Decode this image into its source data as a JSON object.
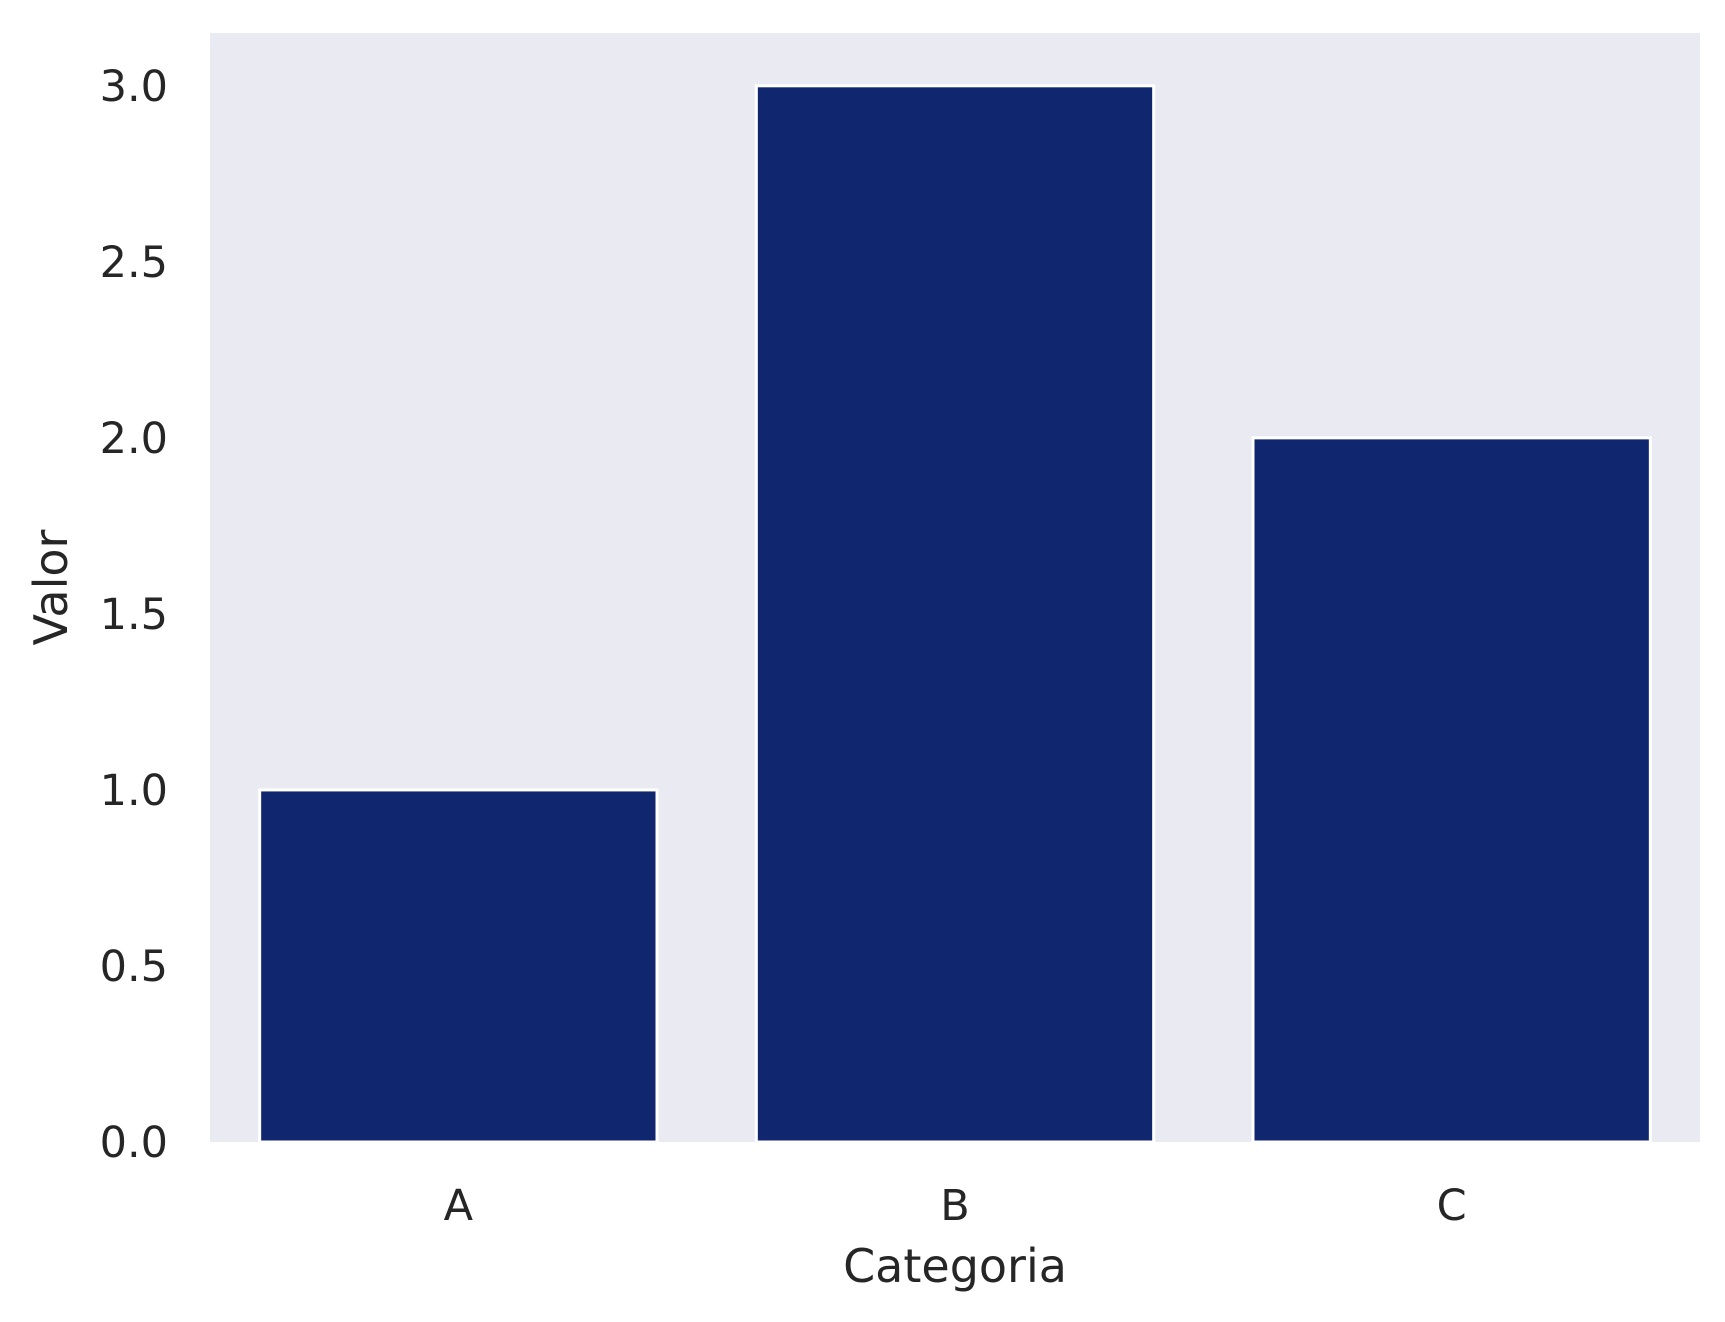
{
  "chart_data": {
    "type": "bar",
    "title": "",
    "xlabel": "Categoria",
    "ylabel": "Valor",
    "categories": [
      "A",
      "B",
      "C"
    ],
    "values": [
      1,
      3,
      2
    ],
    "ylim": [
      0,
      3.15
    ],
    "yticks": [
      "0.0",
      "0.5",
      "1.0",
      "1.5",
      "2.0",
      "2.5",
      "3.0"
    ],
    "grid": false,
    "legend": "none",
    "colors": {
      "bar": "#10266f",
      "bar_edge": "#ffffff",
      "plot_background": "#eaeaf2",
      "page_background": "#ffffff",
      "text": "#262626"
    }
  }
}
